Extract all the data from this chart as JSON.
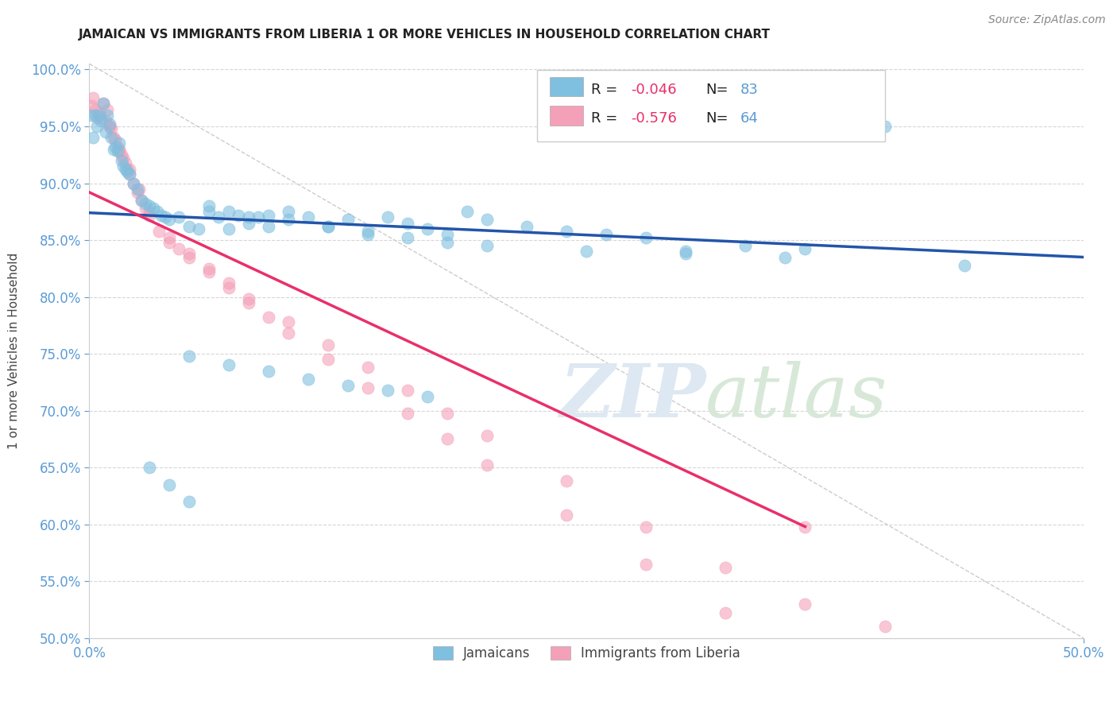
{
  "title": "JAMAICAN VS IMMIGRANTS FROM LIBERIA 1 OR MORE VEHICLES IN HOUSEHOLD CORRELATION CHART",
  "source": "Source: ZipAtlas.com",
  "ylabel": "1 or more Vehicles in Household",
  "xlim": [
    0.0,
    0.5
  ],
  "ylim": [
    0.5,
    1.005
  ],
  "jamaican_color": "#7fbfdf",
  "liberia_color": "#f4a0b8",
  "jamaican_line_color": "#2255aa",
  "liberia_line_color": "#e8306a",
  "diagonal_color": "#cccccc",
  "background_color": "#ffffff",
  "grid_color": "#cccccc",
  "jamaican_R": -0.046,
  "jamaican_N": 83,
  "liberia_R": -0.576,
  "liberia_N": 64,
  "jamaican_trend_x0": 0.0,
  "jamaican_trend_y0": 0.874,
  "jamaican_trend_x1": 0.5,
  "jamaican_trend_y1": 0.835,
  "liberia_trend_x0": 0.0,
  "liberia_trend_y0": 0.892,
  "liberia_trend_x1": 0.36,
  "liberia_trend_y1": 0.598,
  "jamaicans_x": [
    0.001,
    0.002,
    0.003,
    0.004,
    0.005,
    0.006,
    0.007,
    0.008,
    0.009,
    0.01,
    0.011,
    0.012,
    0.013,
    0.014,
    0.015,
    0.016,
    0.017,
    0.018,
    0.019,
    0.02,
    0.022,
    0.024,
    0.026,
    0.028,
    0.03,
    0.032,
    0.034,
    0.036,
    0.038,
    0.04,
    0.045,
    0.05,
    0.055,
    0.06,
    0.065,
    0.07,
    0.075,
    0.08,
    0.085,
    0.09,
    0.1,
    0.11,
    0.12,
    0.13,
    0.14,
    0.15,
    0.16,
    0.17,
    0.18,
    0.19,
    0.2,
    0.22,
    0.24,
    0.26,
    0.28,
    0.3,
    0.33,
    0.36,
    0.4,
    0.44,
    0.06,
    0.07,
    0.08,
    0.09,
    0.1,
    0.12,
    0.14,
    0.16,
    0.18,
    0.2,
    0.25,
    0.3,
    0.35,
    0.05,
    0.07,
    0.09,
    0.11,
    0.13,
    0.15,
    0.17,
    0.03,
    0.04,
    0.05
  ],
  "jamaicans_y": [
    0.96,
    0.94,
    0.96,
    0.95,
    0.96,
    0.955,
    0.97,
    0.945,
    0.96,
    0.952,
    0.94,
    0.93,
    0.932,
    0.928,
    0.935,
    0.92,
    0.915,
    0.912,
    0.91,
    0.908,
    0.9,
    0.895,
    0.885,
    0.882,
    0.88,
    0.878,
    0.875,
    0.872,
    0.87,
    0.868,
    0.87,
    0.862,
    0.86,
    0.875,
    0.87,
    0.86,
    0.872,
    0.865,
    0.87,
    0.862,
    0.875,
    0.87,
    0.862,
    0.868,
    0.858,
    0.87,
    0.865,
    0.86,
    0.855,
    0.875,
    0.868,
    0.862,
    0.858,
    0.855,
    0.852,
    0.84,
    0.845,
    0.842,
    0.95,
    0.828,
    0.88,
    0.875,
    0.87,
    0.872,
    0.868,
    0.862,
    0.855,
    0.852,
    0.848,
    0.845,
    0.84,
    0.838,
    0.835,
    0.748,
    0.74,
    0.735,
    0.728,
    0.722,
    0.718,
    0.712,
    0.65,
    0.635,
    0.62
  ],
  "liberia_x": [
    0.001,
    0.002,
    0.003,
    0.004,
    0.005,
    0.006,
    0.007,
    0.008,
    0.009,
    0.01,
    0.011,
    0.012,
    0.013,
    0.014,
    0.015,
    0.016,
    0.017,
    0.018,
    0.019,
    0.02,
    0.022,
    0.024,
    0.026,
    0.028,
    0.03,
    0.035,
    0.04,
    0.045,
    0.05,
    0.06,
    0.07,
    0.08,
    0.09,
    0.1,
    0.12,
    0.14,
    0.16,
    0.18,
    0.2,
    0.24,
    0.28,
    0.32,
    0.36,
    0.4,
    0.01,
    0.015,
    0.02,
    0.025,
    0.03,
    0.04,
    0.05,
    0.06,
    0.07,
    0.08,
    0.1,
    0.12,
    0.14,
    0.16,
    0.18,
    0.2,
    0.24,
    0.28,
    0.32,
    0.36
  ],
  "liberia_y": [
    0.968,
    0.975,
    0.965,
    0.958,
    0.962,
    0.958,
    0.97,
    0.955,
    0.965,
    0.95,
    0.948,
    0.94,
    0.938,
    0.932,
    0.928,
    0.925,
    0.922,
    0.918,
    0.912,
    0.908,
    0.9,
    0.892,
    0.885,
    0.878,
    0.872,
    0.858,
    0.848,
    0.842,
    0.835,
    0.822,
    0.808,
    0.795,
    0.782,
    0.768,
    0.745,
    0.72,
    0.698,
    0.675,
    0.652,
    0.608,
    0.565,
    0.522,
    0.598,
    0.51,
    0.95,
    0.93,
    0.912,
    0.895,
    0.875,
    0.852,
    0.838,
    0.825,
    0.812,
    0.798,
    0.778,
    0.758,
    0.738,
    0.718,
    0.698,
    0.678,
    0.638,
    0.598,
    0.562,
    0.53
  ]
}
